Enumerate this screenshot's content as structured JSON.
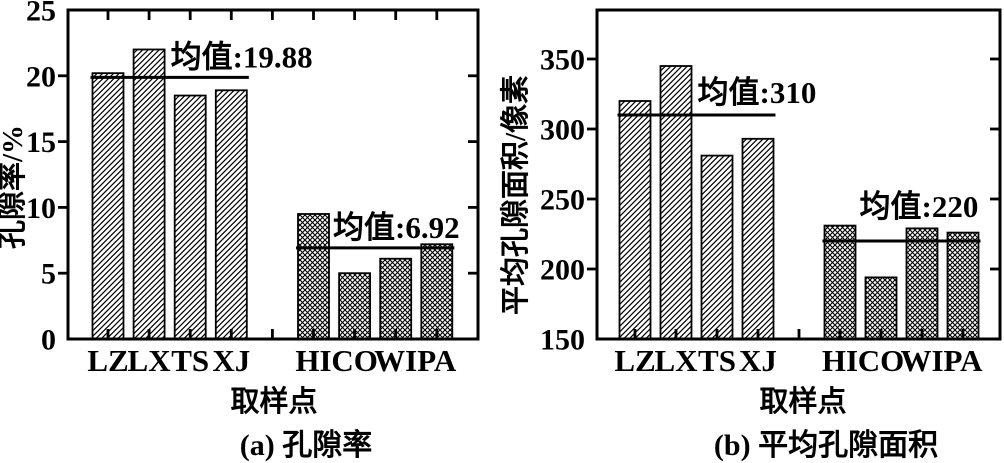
{
  "colors": {
    "ink": "#000000",
    "background": "#ffffff"
  },
  "chart_data": [
    {
      "type": "bar",
      "panel_label": "(a)",
      "caption": "(a) 孔隙率",
      "xlabel": "取样点",
      "ylabel": "孔隙率/%",
      "ylim": [
        0,
        25
      ],
      "yticks": [
        0,
        5,
        10,
        15,
        20,
        25
      ],
      "grid": false,
      "legend": "none",
      "bar_fill_style": [
        "diagonal-hatch",
        "cross-hatch"
      ],
      "series": [
        {
          "name": "diagonal-hatch-group",
          "categories": [
            "LZ",
            "LX",
            "TS",
            "XJ"
          ],
          "values": [
            20.2,
            22.0,
            18.5,
            18.9
          ],
          "mean": 19.88,
          "mean_label": "均值:19.88"
        },
        {
          "name": "cross-hatch-group",
          "categories": [
            "HI",
            "CO",
            "WI",
            "PA"
          ],
          "values": [
            9.5,
            5.0,
            6.1,
            7.2
          ],
          "mean": 6.92,
          "mean_label": "均值:6.92"
        }
      ]
    },
    {
      "type": "bar",
      "panel_label": "(b)",
      "caption": "(b) 平均孔隙面积",
      "xlabel": "取样点",
      "ylabel": "平均孔隙面积/像素",
      "ylim": [
        150,
        385
      ],
      "yticks": [
        150,
        200,
        250,
        300,
        350
      ],
      "grid": false,
      "legend": "none",
      "bar_fill_style": [
        "diagonal-hatch",
        "cross-hatch"
      ],
      "series": [
        {
          "name": "diagonal-hatch-group",
          "categories": [
            "LZ",
            "LX",
            "TS",
            "XJ"
          ],
          "values": [
            320,
            345,
            281,
            293
          ],
          "mean": 310,
          "mean_label": "均值:310"
        },
        {
          "name": "cross-hatch-group",
          "categories": [
            "HI",
            "CO",
            "WI",
            "PA"
          ],
          "values": [
            231,
            194,
            229,
            226
          ],
          "mean": 220,
          "mean_label": "均值:220"
        }
      ]
    }
  ]
}
